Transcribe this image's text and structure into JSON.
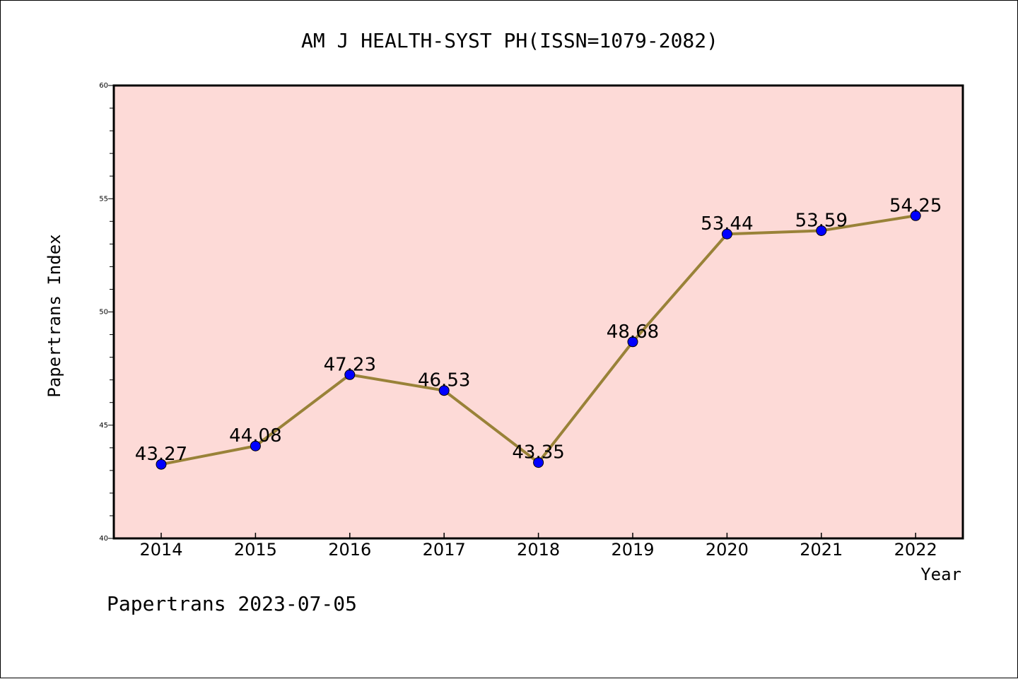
{
  "footer_text": "Papertrans 2023-07-05",
  "chart_data": {
    "type": "line",
    "title": "AM J HEALTH-SYST PH(ISSN=1079-2082)",
    "xlabel": "Year",
    "ylabel": "Papertrans Index",
    "categories": [
      "2014",
      "2015",
      "2016",
      "2017",
      "2018",
      "2019",
      "2020",
      "2021",
      "2022"
    ],
    "series": [
      {
        "values": [
          43.27,
          44.08,
          47.23,
          46.53,
          43.35,
          48.68,
          53.44,
          53.59,
          54.25
        ],
        "labels": [
          "43.27",
          "44.08",
          "47.23",
          "46.53",
          "43.35",
          "48.68",
          "53.44",
          "53.59",
          "54.25"
        ]
      }
    ],
    "ylim": [
      40,
      60
    ],
    "yticks": [
      "40",
      "45",
      "50",
      "55",
      "60"
    ],
    "grid": false,
    "colors": {
      "plot_background": "#fddad7",
      "line": "#998238",
      "marker": "#0000ff",
      "axis": "#000000"
    }
  }
}
